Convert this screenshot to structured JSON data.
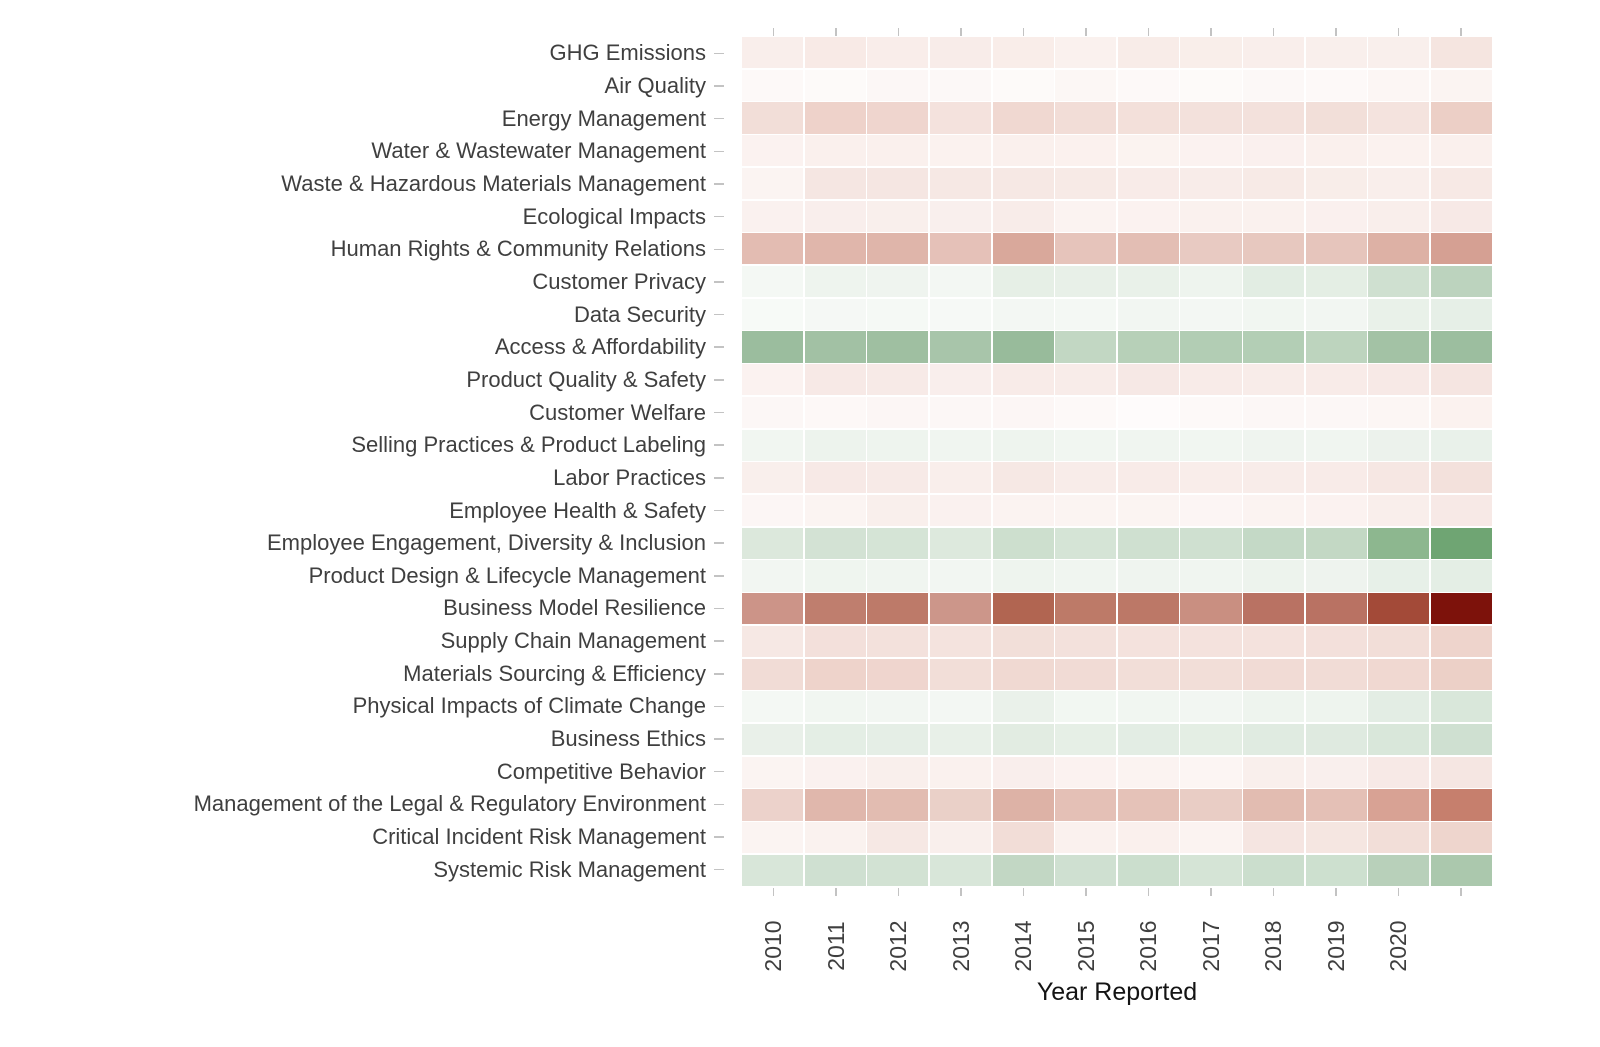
{
  "chart_data": {
    "type": "heatmap",
    "title": "",
    "xlabel": "Year Reported",
    "ylabel": "",
    "legend": "none",
    "grid": "white cell separators",
    "palette": {
      "strong_negative": "#7d120b",
      "neutral": "#ffffff",
      "strong_positive": "#6fa573",
      "axis_text": "#3f3f3f",
      "tick": "#c3c3c3"
    },
    "x_tick_labels": [
      "2010",
      "2011",
      "2012",
      "2013",
      "2014",
      "2015",
      "2016",
      "2017",
      "2018",
      "2019",
      "2020",
      ""
    ],
    "rows": [
      "GHG Emissions",
      "Air Quality",
      "Energy Management",
      "Water & Wastewater Management",
      "Waste & Hazardous Materials Management",
      "Ecological Impacts",
      "Human Rights & Community Relations",
      "Customer Privacy",
      "Data Security",
      "Access & Affordability",
      "Product Quality & Safety",
      "Customer Welfare",
      "Selling Practices & Product Labeling",
      "Labor Practices",
      "Employee Health & Safety",
      "Employee Engagement, Diversity & Inclusion",
      "Product Design & Lifecycle Management",
      "Business Model Resilience",
      "Supply Chain Management",
      "Materials Sourcing & Efficiency",
      "Physical Impacts of Climate Change",
      "Business Ethics",
      "Competitive Behavior",
      "Management of the Legal & Regulatory Environment",
      "Critical Incident Risk Management",
      "Systemic Risk Management"
    ],
    "cell_colors": [
      [
        "#f9eeeb",
        "#f8eae6",
        "#f9edea",
        "#f8ece9",
        "#f9ede9",
        "#faf1ee",
        "#f8ece8",
        "#f9eeea",
        "#f9eeeb",
        "#f9efec",
        "#f9efec",
        "#f5e5e0"
      ],
      [
        "#fdf9f8",
        "#fdfaf9",
        "#fcf7f6",
        "#fcf8f7",
        "#fdfaf9",
        "#fcf7f5",
        "#fdf9f8",
        "#fdfaf9",
        "#fcf8f7",
        "#fdf9f8",
        "#fcf6f4",
        "#fbf4f2"
      ],
      [
        "#f2ded8",
        "#eed2ca",
        "#efd5ce",
        "#f4e2dd",
        "#f0d8d1",
        "#f2ddd7",
        "#f3e0da",
        "#f3e1dc",
        "#f3e1dc",
        "#f2dfd9",
        "#f4e3de",
        "#eccfc6"
      ],
      [
        "#fbf2f0",
        "#faf0ed",
        "#faf0ed",
        "#fbf2ef",
        "#faf0ed",
        "#fbf1ee",
        "#fbf3f0",
        "#fbf2f0",
        "#faf0ee",
        "#faf0ed",
        "#fbf2ef",
        "#faf0ed"
      ],
      [
        "#fbf4f2",
        "#f5e6e2",
        "#f5e6e2",
        "#f6e8e4",
        "#f6e8e4",
        "#f7eae6",
        "#f8ebe8",
        "#f8ece9",
        "#f7eae6",
        "#f8ede9",
        "#f9eeeb",
        "#f7e9e5"
      ],
      [
        "#faf1ef",
        "#f9eeec",
        "#f9efec",
        "#f9efed",
        "#f8ece9",
        "#fbf3f1",
        "#fbf2f0",
        "#faf1ee",
        "#faf1ee",
        "#faf0ee",
        "#f9eeeb",
        "#f7e9e6"
      ],
      [
        "#e3bcb2",
        "#e0b6ab",
        "#dfb5aa",
        "#e5c1b8",
        "#d9a89b",
        "#e6c4bb",
        "#e3beb4",
        "#e8cac2",
        "#e7c8bf",
        "#e6c5bc",
        "#ddb1a5",
        "#d5a093"
      ],
      [
        "#f4f8f4",
        "#eef4ee",
        "#eff4ef",
        "#f3f7f3",
        "#e6efe6",
        "#e8f0e8",
        "#e9f1e9",
        "#eef4ee",
        "#e2ede3",
        "#e4eee4",
        "#cfe0d0",
        "#bcd3be"
      ],
      [
        "#f7faf7",
        "#f5f8f5",
        "#f5f9f5",
        "#f6f9f6",
        "#f3f7f3",
        "#f4f8f4",
        "#f2f6f2",
        "#f3f7f3",
        "#f1f6f1",
        "#f2f6f2",
        "#e9f1e9",
        "#e6efe7"
      ],
      [
        "#9bbd9e",
        "#a2c1a4",
        "#9fbfa1",
        "#a8c5aa",
        "#98bb9b",
        "#c2d7c3",
        "#b7d0b8",
        "#b2cdb4",
        "#b3ceb5",
        "#bdd4be",
        "#a3c2a5",
        "#9cbe9f"
      ],
      [
        "#fbf2f0",
        "#f7e9e6",
        "#f7eae7",
        "#f9eeec",
        "#f8ebe8",
        "#f8ece9",
        "#f6e8e5",
        "#f8ebe8",
        "#f8ece9",
        "#f8ebe8",
        "#f7e9e6",
        "#f5e5e1"
      ],
      [
        "#fcf7f6",
        "#fdf8f7",
        "#fcf6f5",
        "#fcf7f6",
        "#fcf6f5",
        "#fdf9f8",
        "#fefbfb",
        "#fdf9f8",
        "#fcf7f6",
        "#fcf7f6",
        "#fcf6f4",
        "#fbf2ef"
      ],
      [
        "#f1f6f1",
        "#edf3ed",
        "#eef4ee",
        "#f0f5f0",
        "#eef4ee",
        "#f1f6f1",
        "#f0f5f0",
        "#f1f6f1",
        "#eff4ef",
        "#f0f5f0",
        "#ecf2ec",
        "#e9f1ea"
      ],
      [
        "#f9efec",
        "#f7e9e6",
        "#f7eae7",
        "#f9eeeb",
        "#f6e8e4",
        "#f8ece9",
        "#f8ebe8",
        "#f9edea",
        "#f8ece9",
        "#f8ebe8",
        "#f6e7e3",
        "#f3e1dc"
      ],
      [
        "#fcf6f5",
        "#fbf4f2",
        "#f9efec",
        "#faf1ef",
        "#fbf3f1",
        "#fbf4f2",
        "#fbf4f2",
        "#fcf5f4",
        "#fbf3f1",
        "#fbf2f0",
        "#f9eeeb",
        "#f7e9e6"
      ],
      [
        "#dce8dc",
        "#d3e2d4",
        "#d5e4d6",
        "#dde9dd",
        "#cddfce",
        "#d5e4d6",
        "#cfe0d0",
        "#cfe0d0",
        "#c4d9c6",
        "#c3d8c4",
        "#8db78f",
        "#6fa573"
      ],
      [
        "#f2f6f2",
        "#eff5ef",
        "#f0f5f0",
        "#f2f6f2",
        "#eef4ee",
        "#f0f5f0",
        "#eff4ef",
        "#f0f5f0",
        "#edf3ed",
        "#eef3ee",
        "#e7f0e8",
        "#e4eee5"
      ],
      [
        "#cc9488",
        "#bf7e6e",
        "#bd7a69",
        "#cc968a",
        "#b16551",
        "#bd7a68",
        "#bc7867",
        "#c98f81",
        "#b97263",
        "#b97263",
        "#a34a38",
        "#7d120b"
      ],
      [
        "#f6e8e4",
        "#f3e0db",
        "#f3e1dc",
        "#f4e3de",
        "#f2dfd9",
        "#f3e1dc",
        "#f4e2dd",
        "#f4e2dd",
        "#f4e2dd",
        "#f3e0db",
        "#f2ded8",
        "#eed4cc"
      ],
      [
        "#f1dcd6",
        "#eed3cb",
        "#efd5ce",
        "#f2ded8",
        "#f0d9d2",
        "#f1dbd5",
        "#f2ded8",
        "#f2ded8",
        "#f1dbd5",
        "#f1dcd6",
        "#f0d8d1",
        "#ecd0c7"
      ],
      [
        "#f4f8f4",
        "#f1f6f1",
        "#f2f6f2",
        "#f3f7f3",
        "#eaf1ea",
        "#f2f7f2",
        "#f1f6f1",
        "#f2f6f2",
        "#eef4ee",
        "#eef4ee",
        "#e3ede4",
        "#d9e7da"
      ],
      [
        "#e9f0e9",
        "#e4eee5",
        "#e5eee6",
        "#e8f0e8",
        "#e2ece2",
        "#e6efe6",
        "#e3ede4",
        "#e4eee4",
        "#e0ebe1",
        "#dfeae0",
        "#d9e7da",
        "#cfe0d1"
      ],
      [
        "#fbf4f2",
        "#faf1ef",
        "#f9efec",
        "#faf1ee",
        "#f9eeec",
        "#fbf2f0",
        "#fbf3f1",
        "#fcf5f3",
        "#f9efec",
        "#f9efed",
        "#f7e9e6",
        "#f5e6e2"
      ],
      [
        "#ecd2cb",
        "#e0b7ac",
        "#e2bcb1",
        "#ead0c8",
        "#ddb2a6",
        "#e4c0b6",
        "#e5c2b8",
        "#e9cdc5",
        "#e2bcb1",
        "#e4c0b6",
        "#d8a294",
        "#c67f6d"
      ],
      [
        "#fbf4f2",
        "#faf2ef",
        "#f6e8e4",
        "#f9efec",
        "#f2ddd7",
        "#faf1ee",
        "#faf0ed",
        "#fbf3f1",
        "#f5e5e1",
        "#f5e6e1",
        "#f2ded8",
        "#eed5cd"
      ],
      [
        "#d8e6d9",
        "#cfe0d1",
        "#d2e2d3",
        "#d8e6d9",
        "#c2d7c4",
        "#cfe0d1",
        "#cbdecd",
        "#d5e4d6",
        "#cbdecd",
        "#cde0cf",
        "#b8d0ba",
        "#abc8ad"
      ]
    ]
  }
}
